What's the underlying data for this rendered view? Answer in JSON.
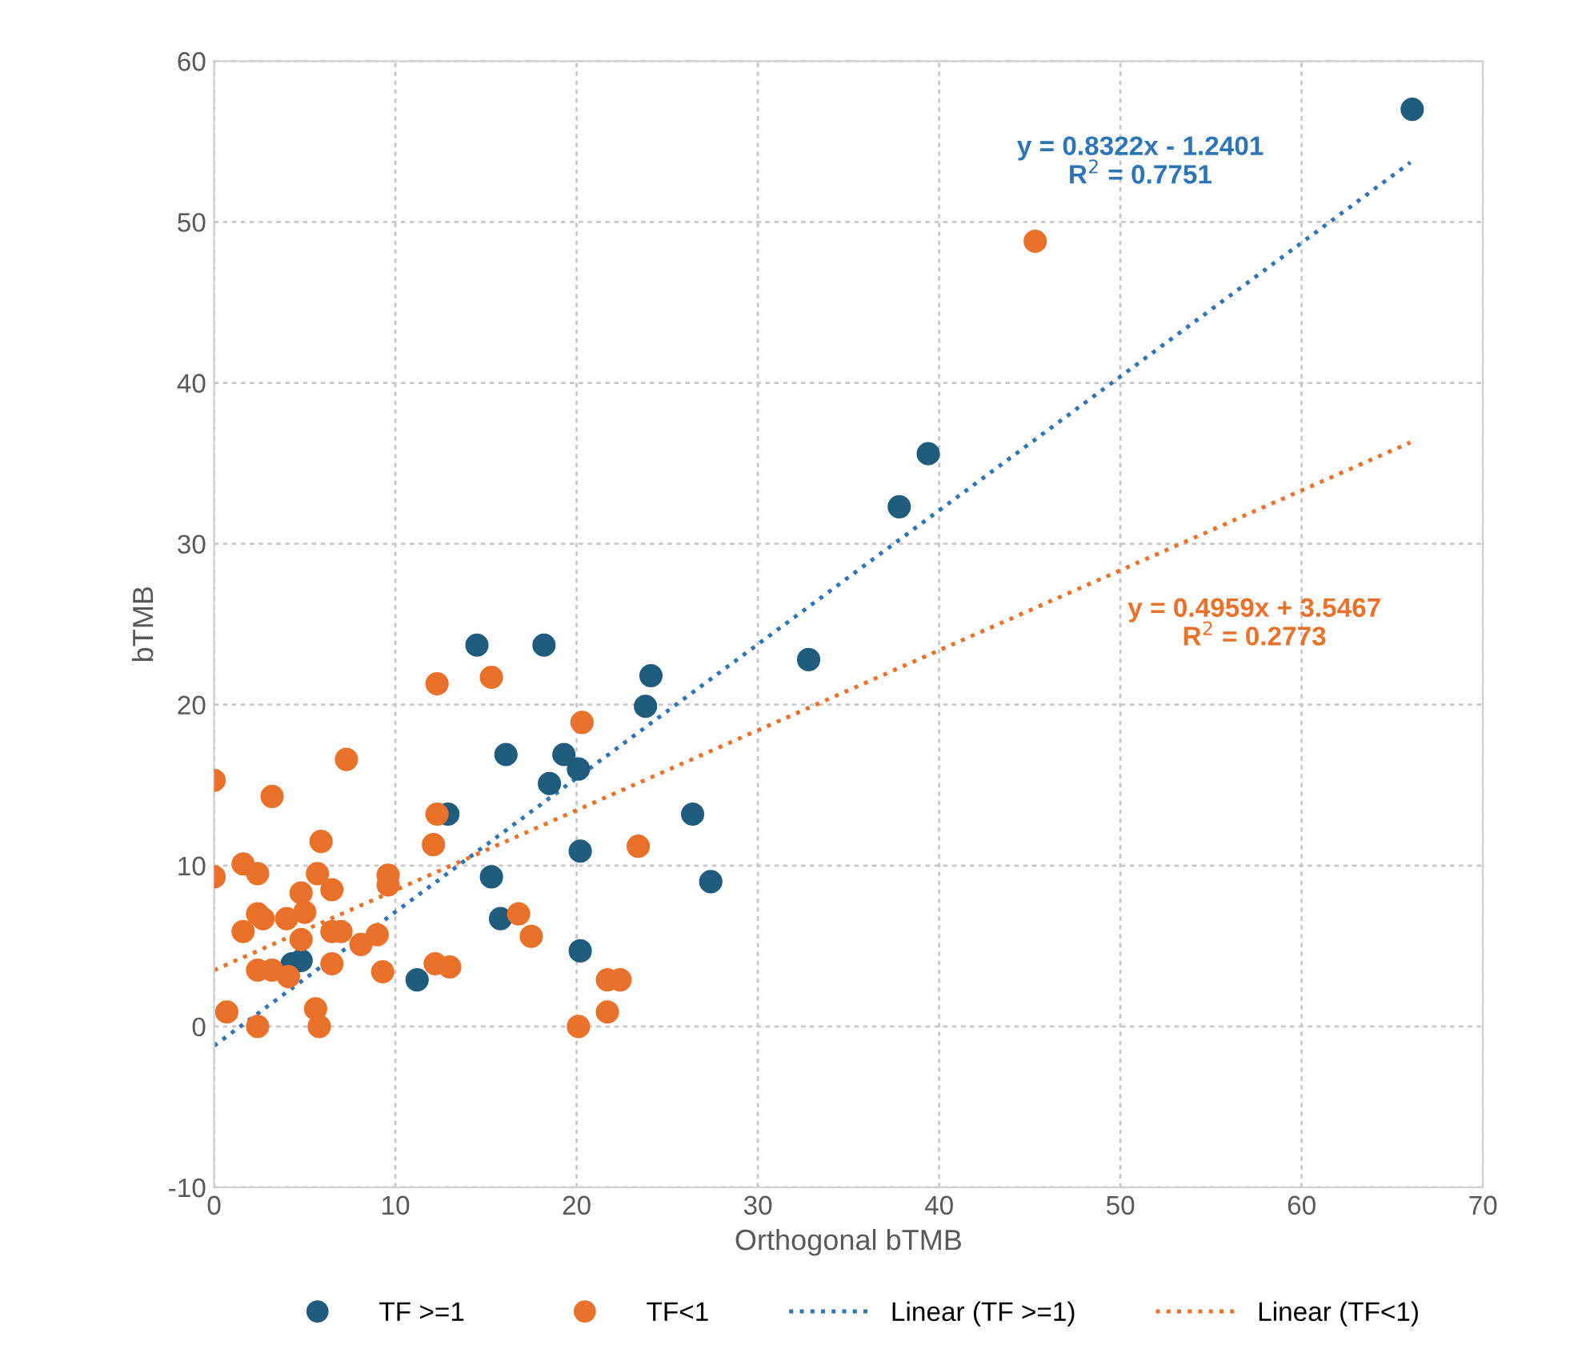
{
  "chart_data": {
    "type": "scatter",
    "xlabel": "Orthogonal bTMB",
    "ylabel": "bTMB",
    "xlim": [
      0,
      70
    ],
    "xticks": [
      0,
      10,
      20,
      30,
      40,
      50,
      60,
      70
    ],
    "ylim": [
      -10,
      60
    ],
    "yticks": [
      -10,
      0,
      10,
      20,
      30,
      40,
      50,
      60
    ],
    "grid": true,
    "legend": "bottom",
    "marker": "circle",
    "series": [
      {
        "name": "TF >=1",
        "color": "#1f5c7e",
        "x": [
          66.1,
          39.4,
          37.8,
          32.8,
          14.5,
          18.2,
          24.1,
          23.8,
          16.1,
          19.3,
          18.5,
          20.1,
          12.9,
          26.4,
          15.3,
          20.2,
          27.4,
          15.8,
          20.2,
          11.2,
          4.3,
          4.8
        ],
        "values": [
          57.0,
          35.6,
          32.3,
          22.8,
          23.7,
          23.7,
          21.8,
          19.9,
          16.9,
          16.9,
          15.1,
          16.0,
          13.2,
          13.2,
          9.3,
          10.9,
          9.0,
          6.7,
          4.7,
          2.9,
          3.9,
          4.1
        ]
      },
      {
        "name": "TF<1",
        "color": "#e9712a",
        "x": [
          45.3,
          12.3,
          15.3,
          0,
          3.2,
          7.3,
          12.3,
          12.1,
          5.9,
          0,
          1.6,
          2.4,
          5.7,
          6.5,
          9.6,
          9.6,
          4.8,
          2.4,
          2.7,
          4.0,
          5.0,
          1.6,
          4.8,
          6.5,
          7.0,
          9.0,
          8.1,
          2.4,
          3.2,
          4.1,
          6.5,
          9.3,
          0.7,
          2.4,
          5.6,
          5.8,
          20.3,
          23.4,
          16.8,
          17.5,
          12.2,
          13.0,
          21.7,
          22.4,
          21.7,
          20.1
        ],
        "values": [
          48.8,
          21.3,
          21.7,
          15.3,
          14.3,
          16.6,
          13.2,
          11.3,
          11.5,
          9.3,
          10.1,
          9.5,
          9.5,
          8.5,
          9.4,
          8.8,
          8.3,
          7.0,
          6.7,
          6.7,
          7.1,
          5.9,
          5.4,
          5.9,
          5.9,
          5.7,
          5.1,
          3.5,
          3.5,
          3.1,
          3.9,
          3.4,
          0.9,
          0,
          1.1,
          0,
          18.9,
          11.2,
          7.0,
          5.6,
          3.9,
          3.7,
          2.9,
          2.9,
          0.9,
          0
        ]
      },
      {
        "name": "Linear (TF >=1)",
        "type": "line",
        "line_style": "dotted",
        "marker": "none",
        "color": "#2e75b6",
        "x": [
          0,
          66
        ],
        "values": [
          -1.2,
          53.7
        ]
      },
      {
        "name": "Linear (TF<1)",
        "type": "line",
        "line_style": "dotted",
        "marker": "none",
        "color": "#e9712a",
        "x": [
          0,
          66
        ],
        "values": [
          3.5,
          36.3
        ]
      }
    ],
    "annotations": [
      "y = 0.8322x - 1.2401\nR$^{2}$ = 0.7751",
      "y = 0.4959x + 3.5467\nR$^{2}$ = 0.2773"
    ]
  }
}
